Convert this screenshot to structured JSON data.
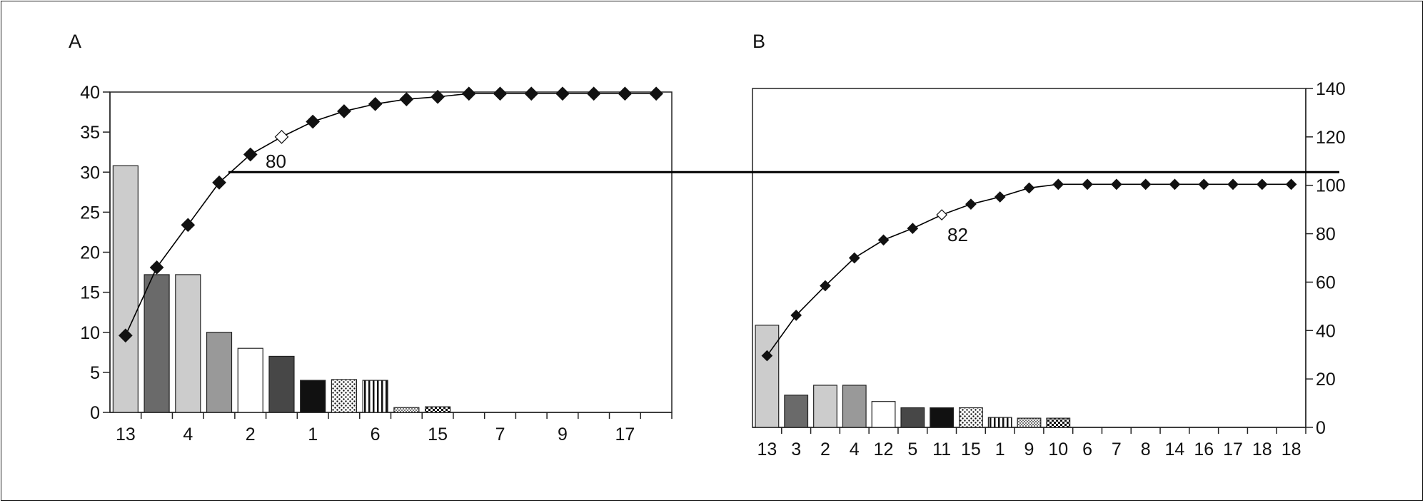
{
  "colors": {
    "axis": "#222222",
    "line": "#000000",
    "marker": "#111111",
    "marker_open": "#ffffff",
    "bar_light": "#cccccc",
    "bar_mid": "#999999",
    "bar_dark": "#6a6a6a",
    "bar_darker": "#474747",
    "bar_black": "#111111",
    "bar_white": "#ffffff"
  },
  "chart_data": [
    {
      "panel": "A",
      "type": "bar",
      "overlay": "line",
      "title": "A",
      "xlabel": "",
      "ylabel": "",
      "ylim": [
        0,
        40
      ],
      "yticks": [
        0,
        5,
        10,
        15,
        20,
        25,
        30,
        35,
        40
      ],
      "categories": [
        "13",
        "",
        "4",
        "",
        "2",
        "",
        "1",
        "",
        "6",
        "",
        "15",
        "",
        "7",
        "",
        "9",
        "",
        "17",
        ""
      ],
      "bar_values": [
        30.8,
        17.2,
        17.2,
        10,
        8,
        7,
        4,
        4.1,
        4,
        0.6,
        0.7,
        0,
        0,
        0,
        0,
        0,
        0,
        0
      ],
      "bar_patterns": [
        "light",
        "dark",
        "light",
        "mid",
        "white",
        "darker",
        "black",
        "dots",
        "vstripes",
        "dots-small",
        "checker",
        "none",
        "none",
        "none",
        "none",
        "none",
        "none",
        "none"
      ],
      "cumulative": [
        9.6,
        18.1,
        23.4,
        28.7,
        32.2,
        34.4,
        36.3,
        37.6,
        38.5,
        39.1,
        39.4,
        39.8,
        39.8,
        39.8,
        39.8,
        39.8,
        39.8,
        39.8
      ],
      "open_marker_index": 5,
      "annotation": "80",
      "reference_line": 30
    },
    {
      "panel": "B",
      "type": "bar",
      "overlay": "line",
      "title": "B",
      "xlabel": "",
      "ylabel": "",
      "ylim": [
        0,
        140
      ],
      "yticks": [
        0,
        20,
        40,
        60,
        80,
        100,
        120,
        140
      ],
      "y_axis_side": "right",
      "categories": [
        "13",
        "3",
        "2",
        "4",
        "12",
        "5",
        "11",
        "15",
        "1",
        "9",
        "10",
        "6",
        "7",
        "8",
        "14",
        "16",
        "17",
        "18",
        "18"
      ],
      "bar_values": [
        42.2,
        13.3,
        17.4,
        17.4,
        10.7,
        8.1,
        8.1,
        8.1,
        4.1,
        3.8,
        3.8,
        0,
        0,
        0,
        0,
        0,
        0,
        0,
        0
      ],
      "bar_patterns": [
        "light",
        "dark",
        "light",
        "mid",
        "white",
        "darker",
        "black",
        "dots",
        "vstripes",
        "dots-small",
        "checker",
        "none",
        "none",
        "none",
        "none",
        "none",
        "none",
        "none",
        "none"
      ],
      "cumulative": [
        29.6,
        46.3,
        58.5,
        70.0,
        77.4,
        82.2,
        87.8,
        92.2,
        95.2,
        98.9,
        100.4,
        100.4,
        100.4,
        100.4,
        100.4,
        100.4,
        100.4,
        100.4,
        100.4
      ],
      "open_marker_index": 6,
      "annotation": "82",
      "reference_line": 105
    }
  ]
}
